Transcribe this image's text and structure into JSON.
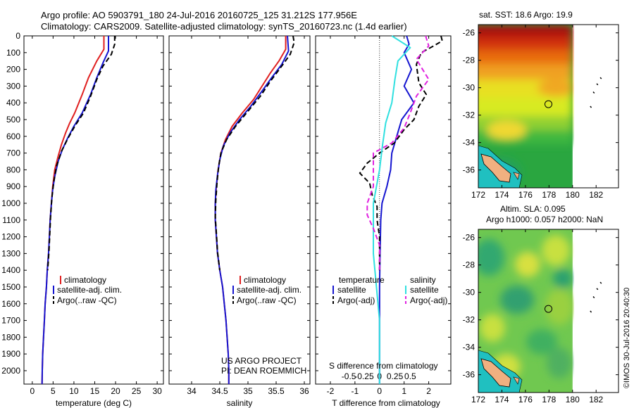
{
  "header": {
    "line1": "Argo profile: AO 5903791_180 24-Jul-2016 20160725_125 31.212S 177.956E",
    "line2": "Climatology: CARS2009. Satellite-adjusted climatology: synTS_20160723.nc (1.4d earlier)"
  },
  "colors": {
    "climatology": "#e02020",
    "satellite": "#1515d0",
    "argo": "#000000",
    "cyan": "#30e0e0",
    "magenta": "#e020e0"
  },
  "depth_axis": {
    "ticks": [
      "0",
      "100",
      "200",
      "300",
      "400",
      "500",
      "600",
      "700",
      "800",
      "900",
      "1000",
      "1100",
      "1200",
      "1300",
      "1400",
      "1500",
      "1600",
      "1700",
      "1800",
      "1900",
      "2000"
    ],
    "range": [
      0,
      2080
    ]
  },
  "chart_data": [
    {
      "type": "line",
      "id": "temperature",
      "xlabel": "temperature (deg C)",
      "xlim": [
        -2,
        31.5
      ],
      "xticks": [
        "0",
        "5",
        "10",
        "15",
        "20",
        "25",
        "30"
      ],
      "xtick_values": [
        0,
        5,
        10,
        15,
        20,
        25,
        30
      ],
      "ylim": [
        0,
        2080
      ],
      "legend": [
        "climatology",
        "satellite-adj. clim.",
        "Argo(..raw -QC)"
      ],
      "series": [
        {
          "name": "climatology",
          "style": "solid",
          "color": "#e02020",
          "points": [
            [
              17.2,
              0
            ],
            [
              17.2,
              80
            ],
            [
              15.5,
              150
            ],
            [
              13.5,
              250
            ],
            [
              12.0,
              350
            ],
            [
              10.2,
              460
            ],
            [
              9.0,
              520
            ],
            [
              8.0,
              580
            ],
            [
              7.0,
              650
            ],
            [
              6.2,
              720
            ],
            [
              5.4,
              800
            ],
            [
              4.9,
              900
            ],
            [
              4.6,
              1000
            ],
            [
              4.3,
              1100
            ],
            [
              4.1,
              1200
            ],
            [
              3.9,
              1300
            ],
            [
              3.6,
              1400
            ],
            [
              3.4,
              1500
            ],
            [
              3.1,
              1600
            ],
            [
              2.9,
              1700
            ],
            [
              2.7,
              1800
            ],
            [
              2.5,
              1900
            ],
            [
              2.4,
              2000
            ],
            [
              2.35,
              2080
            ]
          ]
        },
        {
          "name": "satellite-adj. clim.",
          "style": "solid",
          "color": "#1515d0",
          "points": [
            [
              18.3,
              0
            ],
            [
              18.3,
              90
            ],
            [
              17.0,
              160
            ],
            [
              15.5,
              250
            ],
            [
              14.0,
              350
            ],
            [
              12.0,
              460
            ],
            [
              10.0,
              540
            ],
            [
              8.5,
              610
            ],
            [
              7.2,
              680
            ],
            [
              6.2,
              750
            ],
            [
              5.4,
              840
            ],
            [
              4.9,
              920
            ],
            [
              4.6,
              1000
            ],
            [
              4.3,
              1100
            ],
            [
              4.1,
              1200
            ],
            [
              3.9,
              1300
            ],
            [
              3.6,
              1400
            ],
            [
              3.4,
              1500
            ],
            [
              3.1,
              1600
            ],
            [
              2.9,
              1700
            ],
            [
              2.7,
              1800
            ],
            [
              2.5,
              1900
            ],
            [
              2.4,
              2000
            ],
            [
              2.35,
              2080
            ]
          ]
        },
        {
          "name": "Argo(..raw -QC)",
          "style": "dash",
          "color": "#000000",
          "points": [
            [
              19.8,
              0
            ],
            [
              19.8,
              50
            ],
            [
              19.0,
              110
            ],
            [
              17.0,
              180
            ],
            [
              15.5,
              260
            ],
            [
              14.0,
              360
            ],
            [
              12.3,
              460
            ],
            [
              10.2,
              540
            ],
            [
              8.6,
              610
            ],
            [
              7.0,
              690
            ],
            [
              5.8,
              780
            ],
            [
              5.1,
              880
            ],
            [
              4.7,
              970
            ],
            [
              4.4,
              1080
            ],
            [
              4.2,
              1190
            ],
            [
              4.0,
              1290
            ],
            [
              3.7,
              1400
            ]
          ]
        }
      ]
    },
    {
      "type": "line",
      "id": "salinity",
      "xlabel": "salinity",
      "xlim": [
        33.6,
        36.1
      ],
      "xticks": [
        "34",
        "34.5",
        "35",
        "35.5",
        "36"
      ],
      "xtick_values": [
        34,
        34.5,
        35,
        35.5,
        36
      ],
      "ylim": [
        0,
        2080
      ],
      "legend": [
        "climatology",
        "satellite-adj. clim.",
        "Argo(..raw -QC)"
      ],
      "annotation": [
        "US ARGO PROJECT",
        "PI: DEAN ROEMMICH"
      ],
      "series": [
        {
          "name": "climatology",
          "style": "solid",
          "color": "#e02020",
          "points": [
            [
              35.67,
              0
            ],
            [
              35.67,
              80
            ],
            [
              35.55,
              150
            ],
            [
              35.4,
              220
            ],
            [
              35.25,
              300
            ],
            [
              35.1,
              380
            ],
            [
              34.9,
              460
            ],
            [
              34.72,
              540
            ],
            [
              34.6,
              620
            ],
            [
              34.52,
              700
            ],
            [
              34.47,
              800
            ],
            [
              34.44,
              900
            ],
            [
              34.42,
              1000
            ],
            [
              34.42,
              1100
            ],
            [
              34.44,
              1200
            ],
            [
              34.46,
              1300
            ],
            [
              34.5,
              1400
            ],
            [
              34.55,
              1500
            ],
            [
              34.58,
              1600
            ],
            [
              34.61,
              1700
            ],
            [
              34.63,
              1800
            ],
            [
              34.65,
              1900
            ],
            [
              34.66,
              2000
            ],
            [
              34.66,
              2080
            ]
          ]
        },
        {
          "name": "satellite-adj. clim.",
          "style": "solid",
          "color": "#1515d0",
          "points": [
            [
              35.7,
              0
            ],
            [
              35.72,
              90
            ],
            [
              35.6,
              170
            ],
            [
              35.42,
              250
            ],
            [
              35.25,
              330
            ],
            [
              35.05,
              420
            ],
            [
              34.85,
              500
            ],
            [
              34.68,
              580
            ],
            [
              34.56,
              660
            ],
            [
              34.5,
              740
            ],
            [
              34.46,
              830
            ],
            [
              34.43,
              920
            ],
            [
              34.42,
              1000
            ],
            [
              34.42,
              1100
            ],
            [
              34.44,
              1200
            ],
            [
              34.46,
              1300
            ],
            [
              34.5,
              1400
            ],
            [
              34.55,
              1500
            ],
            [
              34.58,
              1600
            ],
            [
              34.61,
              1700
            ],
            [
              34.63,
              1800
            ],
            [
              34.65,
              1900
            ],
            [
              34.66,
              2000
            ],
            [
              34.66,
              2080
            ]
          ]
        },
        {
          "name": "Argo(..raw -QC)",
          "style": "dash",
          "color": "#000000",
          "points": [
            [
              35.8,
              0
            ],
            [
              35.82,
              40
            ],
            [
              35.75,
              110
            ],
            [
              35.6,
              180
            ],
            [
              35.4,
              270
            ],
            [
              35.22,
              360
            ],
            [
              35.0,
              450
            ],
            [
              34.78,
              540
            ],
            [
              34.62,
              620
            ],
            [
              34.52,
              700
            ],
            [
              34.48,
              780
            ],
            [
              34.45,
              880
            ],
            [
              34.43,
              980
            ],
            [
              34.42,
              1080
            ],
            [
              34.44,
              1180
            ],
            [
              34.46,
              1290
            ],
            [
              34.5,
              1400
            ]
          ]
        }
      ]
    },
    {
      "type": "line",
      "id": "difference",
      "xlabel": "T difference from climatology",
      "xlabel_top": "S difference from climatology",
      "xlim": [
        -2.6,
        2.9
      ],
      "xticks": [
        "-2",
        "-1",
        "0",
        "1",
        "2"
      ],
      "xtick_values": [
        -2,
        -1,
        0,
        1,
        2
      ],
      "s_ticks": [
        "-0.5",
        "-0.25",
        "0",
        "0.25",
        "0.5"
      ],
      "s_tick_values": [
        -0.5,
        -0.25,
        0,
        0.25,
        0.5
      ],
      "ylim": [
        0,
        2080
      ],
      "legend_left_title": "temperature",
      "legend_right_title": "salinity",
      "legend": [
        "satellite",
        "Argo(-adj)",
        "satellite",
        "Argo(-adj)"
      ],
      "series": [
        {
          "name": "T satellite",
          "style": "solid",
          "color": "#1515d0",
          "points": [
            [
              1.1,
              0
            ],
            [
              1.2,
              50
            ],
            [
              1.0,
              100
            ],
            [
              1.3,
              200
            ],
            [
              1.0,
              300
            ],
            [
              1.4,
              400
            ],
            [
              0.9,
              500
            ],
            [
              0.7,
              600
            ],
            [
              0.5,
              700
            ],
            [
              0.45,
              800
            ],
            [
              0.3,
              900
            ],
            [
              0.1,
              1000
            ],
            [
              0.05,
              1100
            ],
            [
              0.02,
              1300
            ],
            [
              0.0,
              1500
            ],
            [
              0.0,
              1700
            ],
            [
              0.0,
              2080
            ]
          ]
        },
        {
          "name": "T Argo(-adj)",
          "style": "dash",
          "color": "#000000",
          "points": [
            [
              2.5,
              0
            ],
            [
              2.55,
              30
            ],
            [
              2.2,
              60
            ],
            [
              1.7,
              100
            ],
            [
              1.5,
              170
            ],
            [
              1.6,
              280
            ],
            [
              1.9,
              350
            ],
            [
              1.6,
              420
            ],
            [
              1.4,
              500
            ],
            [
              1.0,
              560
            ],
            [
              0.6,
              640
            ],
            [
              0.0,
              700
            ],
            [
              -0.5,
              760
            ],
            [
              -0.8,
              820
            ],
            [
              -0.4,
              880
            ],
            [
              -0.3,
              950
            ],
            [
              -0.1,
              1020
            ],
            [
              -0.1,
              1100
            ],
            [
              0.0,
              1200
            ],
            [
              0.0,
              1400
            ]
          ]
        },
        {
          "name": "S satellite",
          "style": "solid",
          "color": "#30e0e0",
          "points": [
            [
              0.2,
              0
            ],
            [
              0.5,
              70
            ],
            [
              0.3,
              150
            ],
            [
              0.25,
              260
            ],
            [
              0.2,
              400
            ],
            [
              0.1,
              520
            ],
            [
              0.05,
              650
            ],
            [
              0.0,
              800
            ],
            [
              -0.05,
              900
            ],
            [
              -0.1,
              1000
            ],
            [
              -0.1,
              1100
            ],
            [
              -0.1,
              1300
            ],
            [
              -0.05,
              1500
            ],
            [
              0.0,
              1700
            ],
            [
              0.0,
              2080
            ]
          ]
        },
        {
          "name": "S Argo(-adj)",
          "style": "dash",
          "color": "#e020e0",
          "points": [
            [
              0.75,
              0
            ],
            [
              0.8,
              60
            ],
            [
              0.6,
              140
            ],
            [
              0.8,
              260
            ],
            [
              0.6,
              360
            ],
            [
              0.5,
              460
            ],
            [
              0.4,
              550
            ],
            [
              0.2,
              640
            ],
            [
              -0.1,
              700
            ],
            [
              -0.1,
              800
            ],
            [
              -0.1,
              900
            ],
            [
              -0.2,
              1000
            ],
            [
              -0.2,
              1070
            ],
            [
              -0.1,
              1150
            ],
            [
              0.0,
              1250
            ],
            [
              0.0,
              1400
            ]
          ]
        }
      ]
    },
    {
      "type": "heatmap",
      "id": "sst_map",
      "title": "sat. SST: 18.6  Argo: 19.9",
      "xticks": [
        "172",
        "174",
        "176",
        "178",
        "180",
        "182"
      ],
      "xtick_values": [
        172,
        174,
        176,
        178,
        180,
        182
      ],
      "yticks": [
        "-26",
        "-28",
        "-30",
        "-32",
        "-34",
        "-36"
      ],
      "ytick_values": [
        -26,
        -28,
        -30,
        -32,
        -34,
        -36
      ],
      "xlim": [
        172,
        183.9
      ],
      "ylim": [
        -37.3,
        -25.4
      ],
      "data_xmax": 180,
      "float_position": [
        177.95,
        -31.2
      ]
    },
    {
      "type": "heatmap",
      "id": "sla_map",
      "title": "Altim. SLA: 0.095",
      "title2": "Argo h1000: 0.057  h2000: NaN",
      "xticks": [
        "172",
        "174",
        "176",
        "178",
        "180",
        "182"
      ],
      "xtick_values": [
        172,
        174,
        176,
        178,
        180,
        182
      ],
      "yticks": [
        "-26",
        "-28",
        "-30",
        "-32",
        "-34",
        "-36"
      ],
      "ytick_values": [
        -26,
        -28,
        -30,
        -32,
        -34,
        -36
      ],
      "xlim": [
        172,
        183.9
      ],
      "ylim": [
        -37.3,
        -25.4
      ],
      "data_xmax": 180,
      "float_position": [
        177.95,
        -31.2
      ]
    }
  ],
  "footer": {
    "credit": "©IMOS 30-Jul-2016 20:40:30"
  }
}
